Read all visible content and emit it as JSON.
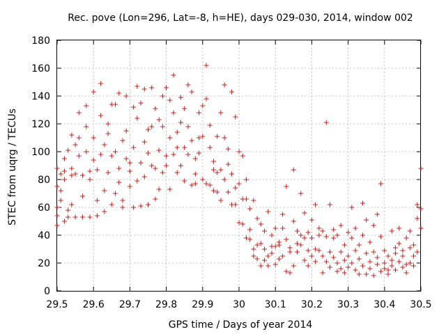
{
  "chart_data": {
    "type": "scatter",
    "title": "Rec. pove (Lon=296, Lat=-8, h=HE), days 029-030, 2014, window 002",
    "xlabel": "GPS time / Days of year 2014",
    "ylabel": "STEC from uqrg / TECUs",
    "xlim": [
      29.5,
      30.5
    ],
    "ylim": [
      0,
      180
    ],
    "xticks": [
      29.5,
      29.6,
      29.7,
      29.8,
      29.9,
      30,
      30.1,
      30.2,
      30.3,
      30.4,
      30.5
    ],
    "xtick_labels": [
      "29.5",
      "29.6",
      "29.7",
      "29.8",
      "29.9",
      "30",
      "30.1",
      "30.2",
      "30.3",
      "30.4",
      "30.5"
    ],
    "yticks": [
      0,
      20,
      40,
      60,
      80,
      100,
      120,
      140,
      160,
      180
    ],
    "ytick_labels": [
      "0",
      "20",
      "40",
      "60",
      "80",
      "100",
      "120",
      "140",
      "160",
      "180"
    ],
    "grid": true,
    "marker": "+",
    "colors": {
      "series": "#d01818"
    },
    "series": [
      {
        "name": "",
        "points": [
          [
            29.5,
            47
          ],
          [
            29.5,
            54
          ],
          [
            29.5,
            60
          ],
          [
            29.5,
            75
          ],
          [
            29.5,
            88
          ],
          [
            29.51,
            65
          ],
          [
            29.51,
            72
          ],
          [
            29.51,
            84
          ],
          [
            29.52,
            50
          ],
          [
            29.52,
            80
          ],
          [
            29.52,
            86
          ],
          [
            29.52,
            95
          ],
          [
            29.53,
            101
          ],
          [
            29.53,
            53
          ],
          [
            29.53,
            58
          ],
          [
            29.54,
            62
          ],
          [
            29.54,
            83
          ],
          [
            29.54,
            88
          ],
          [
            29.54,
            112
          ],
          [
            29.55,
            53
          ],
          [
            29.55,
            105
          ],
          [
            29.55,
            84
          ],
          [
            29.56,
            110
          ],
          [
            29.56,
            97
          ],
          [
            29.56,
            128
          ],
          [
            29.57,
            68
          ],
          [
            29.57,
            83
          ],
          [
            29.57,
            53
          ],
          [
            29.58,
            100
          ],
          [
            29.58,
            118
          ],
          [
            29.58,
            133
          ],
          [
            29.59,
            86
          ],
          [
            29.59,
            53
          ],
          [
            29.59,
            80
          ],
          [
            29.6,
            143
          ],
          [
            29.6,
            94
          ],
          [
            29.6,
            110
          ],
          [
            29.61,
            65
          ],
          [
            29.61,
            87
          ],
          [
            29.61,
            54
          ],
          [
            29.62,
            126
          ],
          [
            29.62,
            149
          ],
          [
            29.62,
            98
          ],
          [
            29.63,
            105
          ],
          [
            29.63,
            72
          ],
          [
            29.63,
            57
          ],
          [
            29.64,
            85
          ],
          [
            29.64,
            113
          ],
          [
            29.64,
            120
          ],
          [
            29.65,
            134
          ],
          [
            29.65,
            62
          ],
          [
            29.65,
            97
          ],
          [
            29.66,
            70
          ],
          [
            29.66,
            134
          ],
          [
            29.66,
            100
          ],
          [
            29.67,
            88
          ],
          [
            29.67,
            142
          ],
          [
            29.67,
            78
          ],
          [
            29.68,
            65
          ],
          [
            29.68,
            60
          ],
          [
            29.68,
            108
          ],
          [
            29.69,
            95
          ],
          [
            29.69,
            140
          ],
          [
            29.69,
            115
          ],
          [
            29.7,
            86
          ],
          [
            29.7,
            75
          ],
          [
            29.7,
            92
          ],
          [
            29.71,
            60
          ],
          [
            29.71,
            132
          ],
          [
            29.71,
            103
          ],
          [
            29.72,
            147
          ],
          [
            29.72,
            124
          ],
          [
            29.72,
            79
          ],
          [
            29.73,
            92
          ],
          [
            29.73,
            61
          ],
          [
            29.73,
            135
          ],
          [
            29.74,
            107
          ],
          [
            29.74,
            145
          ],
          [
            29.74,
            82
          ],
          [
            29.75,
            62
          ],
          [
            29.75,
            99
          ],
          [
            29.75,
            116
          ],
          [
            29.76,
            90
          ],
          [
            29.76,
            146
          ],
          [
            29.76,
            118
          ],
          [
            29.77,
            131
          ],
          [
            29.77,
            88
          ],
          [
            29.77,
            66
          ],
          [
            29.78,
            73
          ],
          [
            29.78,
            101
          ],
          [
            29.78,
            123
          ],
          [
            29.79,
            140
          ],
          [
            29.79,
            118
          ],
          [
            29.79,
            85
          ],
          [
            29.8,
            97
          ],
          [
            29.8,
            146
          ],
          [
            29.8,
            90
          ],
          [
            29.81,
            110
          ],
          [
            29.81,
            137
          ],
          [
            29.81,
            73
          ],
          [
            29.82,
            128
          ],
          [
            29.82,
            98
          ],
          [
            29.82,
            155
          ],
          [
            29.83,
            114
          ],
          [
            29.83,
            103
          ],
          [
            29.83,
            85
          ],
          [
            29.84,
            90
          ],
          [
            29.84,
            139
          ],
          [
            29.84,
            121
          ],
          [
            29.85,
            79
          ],
          [
            29.85,
            103
          ],
          [
            29.85,
            131
          ],
          [
            29.86,
            98
          ],
          [
            29.86,
            118
          ],
          [
            29.86,
            148
          ],
          [
            29.87,
            76
          ],
          [
            29.87,
            108
          ],
          [
            29.87,
            143
          ],
          [
            29.88,
            95
          ],
          [
            29.88,
            84
          ],
          [
            29.88,
            77
          ],
          [
            29.89,
            99
          ],
          [
            29.89,
            110
          ],
          [
            29.89,
            128
          ],
          [
            29.9,
            133
          ],
          [
            29.9,
            111
          ],
          [
            29.9,
            80
          ],
          [
            29.91,
            138
          ],
          [
            29.91,
            162
          ],
          [
            29.91,
            77
          ],
          [
            29.92,
            76
          ],
          [
            29.92,
            119
          ],
          [
            29.92,
            103
          ],
          [
            29.93,
            87
          ],
          [
            29.93,
            72
          ],
          [
            29.93,
            93
          ],
          [
            29.94,
            111
          ],
          [
            29.94,
            71
          ],
          [
            29.94,
            85
          ],
          [
            29.95,
            87
          ],
          [
            29.95,
            128
          ],
          [
            29.95,
            65
          ],
          [
            29.96,
            110
          ],
          [
            29.96,
            148
          ],
          [
            29.96,
            80
          ],
          [
            29.97,
            91
          ],
          [
            29.97,
            102
          ],
          [
            29.97,
            71
          ],
          [
            29.98,
            84
          ],
          [
            29.98,
            62
          ],
          [
            29.98,
            143
          ],
          [
            29.99,
            125
          ],
          [
            29.99,
            74
          ],
          [
            29.99,
            62
          ],
          [
            30.0,
            49
          ],
          [
            30.0,
            100
          ],
          [
            30.0,
            77
          ],
          [
            30.01,
            48
          ],
          [
            30.01,
            97
          ],
          [
            30.01,
            66
          ],
          [
            30.02,
            38
          ],
          [
            30.02,
            66
          ],
          [
            30.02,
            80
          ],
          [
            30.03,
            44
          ],
          [
            30.03,
            37
          ],
          [
            30.03,
            59
          ],
          [
            30.04,
            65
          ],
          [
            30.04,
            30
          ],
          [
            30.04,
            25
          ],
          [
            30.05,
            52
          ],
          [
            30.05,
            23
          ],
          [
            30.05,
            33
          ],
          [
            30.06,
            34
          ],
          [
            30.06,
            48
          ],
          [
            30.06,
            18
          ],
          [
            30.07,
            30
          ],
          [
            30.07,
            22
          ],
          [
            30.07,
            43
          ],
          [
            30.08,
            25
          ],
          [
            30.08,
            18
          ],
          [
            30.08,
            57
          ],
          [
            30.09,
            27
          ],
          [
            30.09,
            40
          ],
          [
            30.09,
            32
          ],
          [
            30.1,
            45
          ],
          [
            30.1,
            32
          ],
          [
            30.1,
            19
          ],
          [
            30.11,
            35
          ],
          [
            30.11,
            33
          ],
          [
            30.11,
            23
          ],
          [
            30.12,
            45
          ],
          [
            30.12,
            25
          ],
          [
            30.12,
            55
          ],
          [
            30.13,
            37
          ],
          [
            30.13,
            75
          ],
          [
            30.13,
            14
          ],
          [
            30.14,
            28
          ],
          [
            30.14,
            13
          ],
          [
            30.14,
            31
          ],
          [
            30.15,
            87
          ],
          [
            30.15,
            50
          ],
          [
            30.15,
            18
          ],
          [
            30.16,
            43
          ],
          [
            30.16,
            34
          ],
          [
            30.16,
            28
          ],
          [
            30.17,
            33
          ],
          [
            30.17,
            70
          ],
          [
            30.17,
            40
          ],
          [
            30.18,
            38
          ],
          [
            30.18,
            56
          ],
          [
            30.18,
            22
          ],
          [
            30.19,
            42
          ],
          [
            30.19,
            29
          ],
          [
            30.19,
            18
          ],
          [
            30.2,
            51
          ],
          [
            30.2,
            25
          ],
          [
            30.2,
            38
          ],
          [
            30.21,
            30
          ],
          [
            30.21,
            62
          ],
          [
            30.21,
            21
          ],
          [
            30.22,
            40
          ],
          [
            30.22,
            45
          ],
          [
            30.22,
            29
          ],
          [
            30.23,
            25
          ],
          [
            30.23,
            13
          ],
          [
            30.23,
            43
          ],
          [
            30.24,
            121
          ],
          [
            30.24,
            39
          ],
          [
            30.24,
            21
          ],
          [
            30.25,
            62
          ],
          [
            30.25,
            28
          ],
          [
            30.25,
            17
          ],
          [
            30.26,
            38
          ],
          [
            30.26,
            24
          ],
          [
            30.26,
            44
          ],
          [
            30.27,
            40
          ],
          [
            30.27,
            20
          ],
          [
            30.27,
            14
          ],
          [
            30.28,
            47
          ],
          [
            30.28,
            16
          ],
          [
            30.28,
            28
          ],
          [
            30.29,
            22
          ],
          [
            30.29,
            33
          ],
          [
            30.29,
            13
          ],
          [
            30.3,
            17
          ],
          [
            30.3,
            42
          ],
          [
            30.3,
            25
          ],
          [
            30.31,
            60
          ],
          [
            30.31,
            38
          ],
          [
            30.31,
            20
          ],
          [
            30.32,
            29
          ],
          [
            30.32,
            15
          ],
          [
            30.32,
            45
          ],
          [
            30.33,
            23
          ],
          [
            30.33,
            33
          ],
          [
            30.33,
            12
          ],
          [
            30.34,
            18
          ],
          [
            30.34,
            40
          ],
          [
            30.34,
            63
          ],
          [
            30.35,
            12
          ],
          [
            30.35,
            27
          ],
          [
            30.35,
            51
          ],
          [
            30.36,
            21
          ],
          [
            30.36,
            35
          ],
          [
            30.36,
            16
          ],
          [
            30.37,
            28
          ],
          [
            30.37,
            11
          ],
          [
            30.37,
            47
          ],
          [
            30.38,
            55
          ],
          [
            30.38,
            19
          ],
          [
            30.38,
            24
          ],
          [
            30.39,
            39
          ],
          [
            30.39,
            77
          ],
          [
            30.39,
            14
          ],
          [
            30.4,
            20
          ],
          [
            30.4,
            16
          ],
          [
            30.4,
            29
          ],
          [
            30.41,
            15
          ],
          [
            30.41,
            25
          ],
          [
            30.41,
            12
          ],
          [
            30.42,
            18
          ],
          [
            30.42,
            43
          ],
          [
            30.42,
            22
          ],
          [
            30.43,
            27
          ],
          [
            30.43,
            15
          ],
          [
            30.43,
            31
          ],
          [
            30.44,
            34
          ],
          [
            30.44,
            21
          ],
          [
            30.44,
            45
          ],
          [
            30.45,
            17
          ],
          [
            30.45,
            29
          ],
          [
            30.45,
            25
          ],
          [
            30.46,
            19
          ],
          [
            30.46,
            38
          ],
          [
            30.46,
            13
          ],
          [
            30.47,
            20
          ],
          [
            30.47,
            31
          ],
          [
            30.47,
            43
          ],
          [
            30.48,
            18
          ],
          [
            30.48,
            33
          ],
          [
            30.48,
            25
          ],
          [
            30.49,
            52
          ],
          [
            30.49,
            62
          ],
          [
            30.49,
            28
          ],
          [
            30.5,
            59
          ],
          [
            30.5,
            88
          ],
          [
            30.5,
            45
          ]
        ]
      }
    ]
  }
}
